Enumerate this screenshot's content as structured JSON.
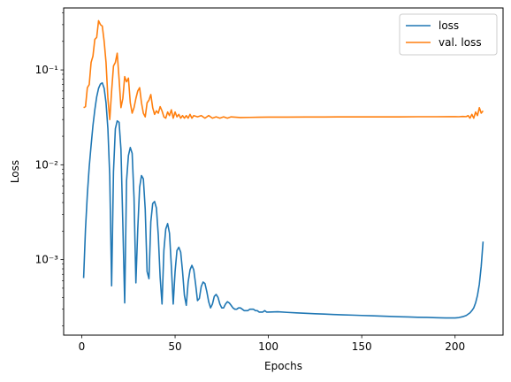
{
  "chart_data": {
    "type": "line",
    "xlabel": "Epochs",
    "ylabel": "Loss",
    "xlim": [
      -9.7,
      225.7
    ],
    "ylim": [
      0.00016,
      0.45
    ],
    "yscale": "log",
    "grid": false,
    "legend_position": "top-right",
    "x_ticks": [
      0,
      50,
      100,
      150,
      200
    ],
    "x_tick_labels": [
      "0",
      "50",
      "100",
      "150",
      "200"
    ],
    "y_ticks": [
      0.001,
      0.01,
      0.1
    ],
    "y_tick_labels": [
      "10⁻³",
      "10⁻²",
      "10⁻¹"
    ],
    "series": [
      {
        "name": "loss",
        "color": "#1f77b4",
        "points": [
          [
            1,
            0.00064
          ],
          [
            2,
            0.0021
          ],
          [
            3,
            0.0049
          ],
          [
            4,
            0.0095
          ],
          [
            5,
            0.016
          ],
          [
            6,
            0.026
          ],
          [
            7,
            0.038
          ],
          [
            8,
            0.052
          ],
          [
            9,
            0.064
          ],
          [
            10,
            0.071
          ],
          [
            11,
            0.073
          ],
          [
            12,
            0.064
          ],
          [
            13,
            0.045
          ],
          [
            14,
            0.024
          ],
          [
            15,
            0.0075
          ],
          [
            16,
            0.00053
          ],
          [
            17,
            0.0085
          ],
          [
            18,
            0.024
          ],
          [
            19,
            0.029
          ],
          [
            20,
            0.028
          ],
          [
            21,
            0.0145
          ],
          [
            22,
            0.0024
          ],
          [
            23,
            0.00035
          ],
          [
            24,
            0.0068
          ],
          [
            25,
            0.0125
          ],
          [
            26,
            0.0152
          ],
          [
            27,
            0.0132
          ],
          [
            28,
            0.0045
          ],
          [
            29,
            0.00057
          ],
          [
            30,
            0.0021
          ],
          [
            31,
            0.0058
          ],
          [
            32,
            0.0077
          ],
          [
            33,
            0.0071
          ],
          [
            34,
            0.0034
          ],
          [
            35,
            0.00075
          ],
          [
            36,
            0.00063
          ],
          [
            37,
            0.0025
          ],
          [
            38,
            0.0039
          ],
          [
            39,
            0.0041
          ],
          [
            40,
            0.0035
          ],
          [
            41,
            0.0018
          ],
          [
            42,
            0.00065
          ],
          [
            43,
            0.00034
          ],
          [
            44,
            0.00125
          ],
          [
            45,
            0.0021
          ],
          [
            46,
            0.0024
          ],
          [
            47,
            0.0019
          ],
          [
            48,
            0.00085
          ],
          [
            49,
            0.00034
          ],
          [
            50,
            0.00075
          ],
          [
            51,
            0.00125
          ],
          [
            52,
            0.00135
          ],
          [
            53,
            0.0012
          ],
          [
            54,
            0.00075
          ],
          [
            55,
            0.00042
          ],
          [
            56,
            0.00033
          ],
          [
            57,
            0.00058
          ],
          [
            58,
            0.00078
          ],
          [
            59,
            0.00087
          ],
          [
            60,
            0.00078
          ],
          [
            61,
            0.00055
          ],
          [
            62,
            0.00037
          ],
          [
            63,
            0.00039
          ],
          [
            64,
            0.00052
          ],
          [
            65,
            0.00058
          ],
          [
            66,
            0.00056
          ],
          [
            67,
            0.00046
          ],
          [
            68,
            0.00036
          ],
          [
            69,
            0.00031
          ],
          [
            70,
            0.00034
          ],
          [
            71,
            0.00041
          ],
          [
            72,
            0.00043
          ],
          [
            73,
            0.0004
          ],
          [
            74,
            0.00034
          ],
          [
            75,
            0.00031
          ],
          [
            76,
            0.00031
          ],
          [
            77,
            0.00034
          ],
          [
            78,
            0.00036
          ],
          [
            79,
            0.00035
          ],
          [
            80,
            0.00033
          ],
          [
            81,
            0.00031
          ],
          [
            82,
            0.0003
          ],
          [
            83,
            0.0003
          ],
          [
            84,
            0.00031
          ],
          [
            85,
            0.00031
          ],
          [
            86,
            0.0003
          ],
          [
            87,
            0.00029
          ],
          [
            88,
            0.00029
          ],
          [
            89,
            0.00029
          ],
          [
            90,
            0.0003
          ],
          [
            91,
            0.0003
          ],
          [
            92,
            0.0003
          ],
          [
            93,
            0.00029
          ],
          [
            94,
            0.00029
          ],
          [
            95,
            0.00028
          ],
          [
            96,
            0.00028
          ],
          [
            97,
            0.00028
          ],
          [
            98,
            0.00029
          ],
          [
            99,
            0.00028
          ],
          [
            100,
            0.00028
          ],
          [
            105,
            0.000282
          ],
          [
            110,
            0.000278
          ],
          [
            115,
            0.000275
          ],
          [
            120,
            0.000272
          ],
          [
            125,
            0.000269
          ],
          [
            130,
            0.000267
          ],
          [
            135,
            0.000264
          ],
          [
            140,
            0.000262
          ],
          [
            145,
            0.00026
          ],
          [
            150,
            0.000258
          ],
          [
            155,
            0.000256
          ],
          [
            160,
            0.000254
          ],
          [
            165,
            0.000252
          ],
          [
            170,
            0.00025
          ],
          [
            175,
            0.000249
          ],
          [
            180,
            0.000247
          ],
          [
            185,
            0.000246
          ],
          [
            190,
            0.000244
          ],
          [
            195,
            0.000243
          ],
          [
            200,
            0.000243
          ],
          [
            202,
            0.000245
          ],
          [
            204,
            0.00025
          ],
          [
            206,
            0.000258
          ],
          [
            208,
            0.000275
          ],
          [
            209,
            0.00029
          ],
          [
            210,
            0.00031
          ],
          [
            211,
            0.00035
          ],
          [
            212,
            0.00042
          ],
          [
            213,
            0.00055
          ],
          [
            214,
            0.00085
          ],
          [
            215,
            0.00155
          ]
        ]
      },
      {
        "name": "val. loss",
        "color": "#ff7f0e",
        "points": [
          [
            1,
            0.04
          ],
          [
            2,
            0.041
          ],
          [
            3,
            0.065
          ],
          [
            4,
            0.07
          ],
          [
            5,
            0.12
          ],
          [
            6,
            0.14
          ],
          [
            7,
            0.21
          ],
          [
            8,
            0.22
          ],
          [
            9,
            0.33
          ],
          [
            10,
            0.3
          ],
          [
            11,
            0.29
          ],
          [
            12,
            0.2
          ],
          [
            13,
            0.12
          ],
          [
            14,
            0.05
          ],
          [
            15,
            0.03
          ],
          [
            16,
            0.06
          ],
          [
            17,
            0.11
          ],
          [
            18,
            0.12
          ],
          [
            19,
            0.15
          ],
          [
            20,
            0.08
          ],
          [
            21,
            0.04
          ],
          [
            22,
            0.05
          ],
          [
            23,
            0.085
          ],
          [
            24,
            0.075
          ],
          [
            25,
            0.082
          ],
          [
            26,
            0.045
          ],
          [
            27,
            0.035
          ],
          [
            28,
            0.04
          ],
          [
            29,
            0.05
          ],
          [
            30,
            0.06
          ],
          [
            31,
            0.065
          ],
          [
            32,
            0.045
          ],
          [
            33,
            0.035
          ],
          [
            34,
            0.032
          ],
          [
            35,
            0.045
          ],
          [
            36,
            0.048
          ],
          [
            37,
            0.055
          ],
          [
            38,
            0.04
          ],
          [
            39,
            0.034
          ],
          [
            40,
            0.037
          ],
          [
            41,
            0.035
          ],
          [
            42,
            0.041
          ],
          [
            43,
            0.037
          ],
          [
            44,
            0.032
          ],
          [
            45,
            0.031
          ],
          [
            46,
            0.036
          ],
          [
            47,
            0.033
          ],
          [
            48,
            0.038
          ],
          [
            49,
            0.031
          ],
          [
            50,
            0.036
          ],
          [
            51,
            0.032
          ],
          [
            52,
            0.034
          ],
          [
            53,
            0.031
          ],
          [
            54,
            0.033
          ],
          [
            55,
            0.031
          ],
          [
            56,
            0.033
          ],
          [
            57,
            0.031
          ],
          [
            58,
            0.034
          ],
          [
            59,
            0.031
          ],
          [
            60,
            0.033
          ],
          [
            62,
            0.032
          ],
          [
            64,
            0.033
          ],
          [
            66,
            0.031
          ],
          [
            68,
            0.033
          ],
          [
            70,
            0.031
          ],
          [
            72,
            0.032
          ],
          [
            74,
            0.031
          ],
          [
            76,
            0.032
          ],
          [
            78,
            0.031
          ],
          [
            80,
            0.032
          ],
          [
            85,
            0.0315
          ],
          [
            90,
            0.0316
          ],
          [
            95,
            0.0317
          ],
          [
            100,
            0.0318
          ],
          [
            110,
            0.0318
          ],
          [
            120,
            0.0319
          ],
          [
            130,
            0.0319
          ],
          [
            140,
            0.032
          ],
          [
            150,
            0.032
          ],
          [
            160,
            0.032
          ],
          [
            170,
            0.032
          ],
          [
            180,
            0.0321
          ],
          [
            190,
            0.0321
          ],
          [
            200,
            0.0322
          ],
          [
            202,
            0.0321
          ],
          [
            204,
            0.0323
          ],
          [
            206,
            0.0322
          ],
          [
            207,
            0.033
          ],
          [
            208,
            0.031
          ],
          [
            209,
            0.034
          ],
          [
            210,
            0.031
          ],
          [
            211,
            0.036
          ],
          [
            212,
            0.033
          ],
          [
            213,
            0.04
          ],
          [
            214,
            0.035
          ],
          [
            215,
            0.037
          ]
        ]
      }
    ]
  }
}
